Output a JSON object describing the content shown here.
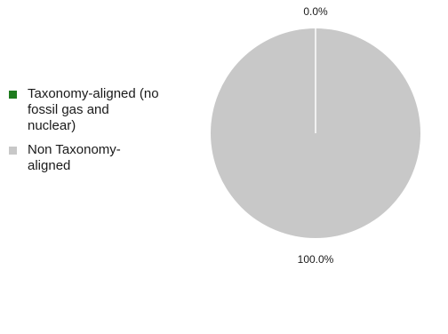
{
  "chart_data": {
    "type": "pie",
    "categories": [
      "Taxonomy-aligned (no fossil gas and nuclear)",
      "Non Taxonomy-aligned"
    ],
    "values": [
      0.0,
      100.0
    ],
    "data_labels": [
      "0.0%",
      "100.0%"
    ],
    "colors": [
      "#1e7b1e",
      "#c8c8c8"
    ],
    "legend": {
      "position": "left",
      "entries": [
        "Taxonomy-aligned (no fossil gas and nuclear)",
        "Non Taxonomy-aligned"
      ]
    }
  }
}
